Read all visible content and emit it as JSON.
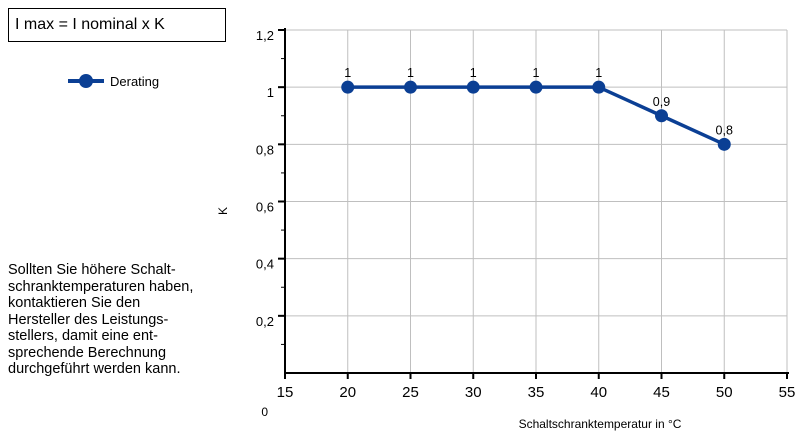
{
  "formula": "I max = I nominal x K",
  "note_lines": [
    "Sollten Sie höhere Schalt-",
    "schranktemperaturen haben,",
    "kontaktieren Sie den",
    "Hersteller des Leistungs-",
    "stellers, damit eine ent-",
    "sprechende Berechnung",
    "durchgeführt werden kann."
  ],
  "colors": {
    "series": "#0b3f94",
    "grid": "#bfbfbf",
    "axis": "#000000"
  },
  "chart_data": {
    "type": "line",
    "xlabel": "Schaltschranktemperatur in °C",
    "ylabel": "K",
    "x_ticks": [
      "15",
      "20",
      "25",
      "30",
      "35",
      "40",
      "45",
      "50",
      "55"
    ],
    "y_ticks": [
      "0",
      "0,2",
      "0,4",
      "0,6",
      "0,8",
      "1",
      "1,2"
    ],
    "xlim": [
      15,
      55
    ],
    "ylim": [
      0,
      1.2
    ],
    "grid": true,
    "legend_position": "left",
    "series": [
      {
        "name": "Derating",
        "x": [
          20,
          25,
          30,
          35,
          40,
          45,
          50
        ],
        "y": [
          1,
          1,
          1,
          1,
          1,
          0.9,
          0.8
        ],
        "labels": [
          "1",
          "1",
          "1",
          "1",
          "1",
          "0,9",
          "0,8"
        ]
      }
    ]
  }
}
